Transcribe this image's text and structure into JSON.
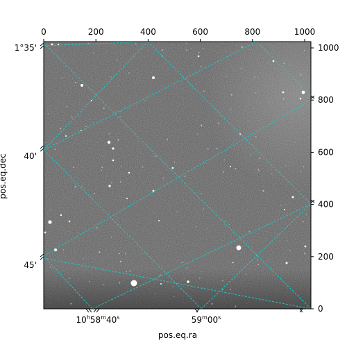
{
  "axes": {
    "xlabel": "pos.eq.ra",
    "ylabel": "pos.eq.dec",
    "pixel_x_ticks": [
      0,
      200,
      400,
      600,
      800,
      1000
    ],
    "pixel_y_ticks": [
      0,
      200,
      400,
      600,
      800,
      1000
    ],
    "pixel_range": [
      0,
      1024
    ],
    "ra_ticks": [
      {
        "h": "10",
        "h_unit": "h",
        "m": "58",
        "m_unit": "m",
        "s": "40",
        "s_unit": "s"
      },
      {
        "h": "",
        "h_unit": "",
        "m": "59",
        "m_unit": "m",
        "s": "00",
        "s_unit": "s"
      }
    ],
    "dec_ticks": [
      "1°35'",
      "40'",
      "45'"
    ]
  },
  "colors": {
    "grid": "#1ec8c8",
    "sky_background": "#5a5a5a",
    "stars": "#ffffff"
  },
  "image": {
    "type": "grayscale astronomical sky image",
    "grid": "dashed cyan WCS coordinate grid"
  }
}
